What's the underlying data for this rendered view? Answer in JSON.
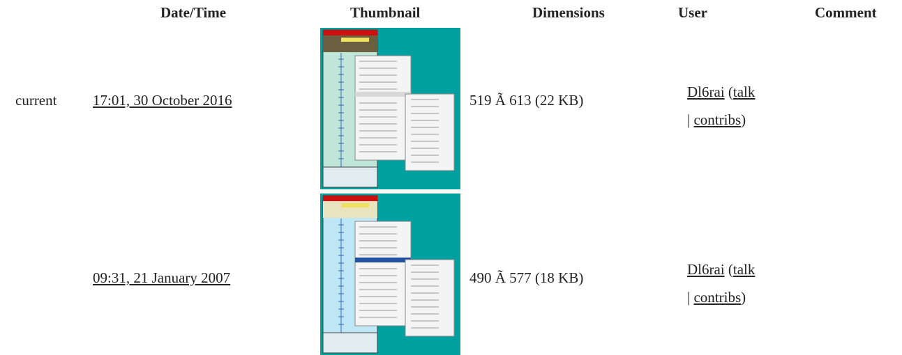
{
  "table": {
    "headers": [
      "Date/Time",
      "Thumbnail",
      "Dimensions",
      "User",
      "Comment"
    ],
    "punctuation": [
      "(",
      "|",
      ")"
    ],
    "rows": [
      {
        "status": "current",
        "datetime": "17:01, 30 October 2016",
        "dimensions": "519 Ã  613 (22 KB)",
        "user": "Dl6rai",
        "talk": "talk",
        "contribs": "contribs"
      },
      {
        "datetime": "09:31, 21 January 2007",
        "dimensions": "490 Ã  577 (18 KB)",
        "user": "Dl6rai",
        "talk": "talk",
        "contribs": "contribs"
      }
    ]
  }
}
